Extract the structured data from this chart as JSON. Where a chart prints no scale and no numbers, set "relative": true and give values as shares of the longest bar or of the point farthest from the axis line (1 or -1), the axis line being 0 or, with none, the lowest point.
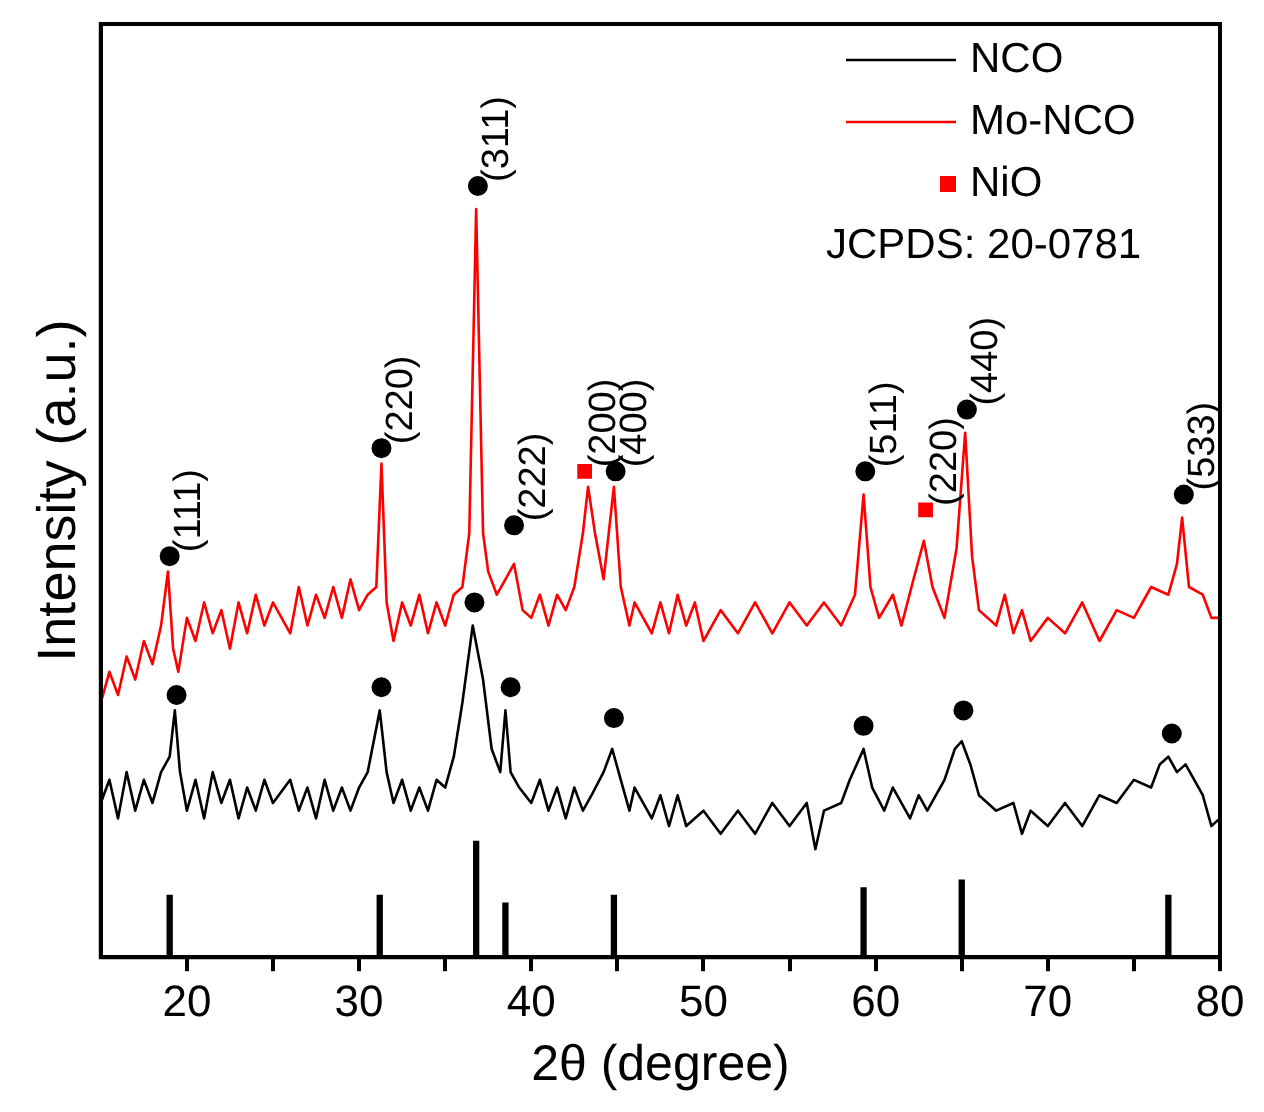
{
  "chart_data": {
    "type": "line",
    "relative": true,
    "xlabel": "2θ (degree)",
    "ylabel": "Intensity (a.u.)",
    "xlim": [
      15,
      80
    ],
    "xticks": [
      20,
      {
        "value": 25,
        "label": null
      },
      30,
      {
        "value": 35,
        "label": null
      },
      40,
      {
        "value": 45,
        "label": null
      },
      50,
      {
        "value": 55,
        "label": null
      },
      60,
      {
        "value": 65,
        "label": null
      },
      70,
      {
        "value": 75,
        "label": null
      },
      80
    ],
    "grid": false,
    "legend": "top right",
    "marker": "none",
    "line_style": "solid",
    "series": [
      {
        "name": "NCO",
        "color": "#000000",
        "x": [
          15,
          15.5,
          16,
          16.5,
          17,
          17.5,
          18,
          18.5,
          19,
          19.3,
          19.6,
          20,
          20.5,
          21,
          21.5,
          22,
          22.5,
          23,
          23.5,
          24,
          24.5,
          25,
          26,
          26.5,
          27,
          27.5,
          28,
          28.5,
          29,
          29.5,
          30,
          30.5,
          31.2,
          31.6,
          32,
          32.5,
          33,
          33.5,
          34,
          34.5,
          35,
          35.5,
          36,
          36.6,
          37.2,
          37.7,
          38.2,
          38.5,
          38.8,
          39.3,
          40,
          40.5,
          41,
          41.5,
          42,
          42.5,
          43,
          43.5,
          44.2,
          44.7,
          45.2,
          45.7,
          46,
          47,
          47.5,
          48,
          48.5,
          49,
          50,
          51,
          52,
          53,
          54,
          55,
          56,
          56.5,
          57,
          58,
          58.5,
          59.3,
          59.8,
          60.5,
          61,
          62,
          62.5,
          63,
          64,
          64.6,
          65,
          65.5,
          66,
          67,
          68,
          68.5,
          69,
          70,
          71,
          72,
          73,
          74,
          75,
          76,
          76.5,
          77,
          77.5,
          78,
          79,
          79.5,
          80
        ],
        "values": [
          0.2,
          0.23,
          0.18,
          0.24,
          0.19,
          0.23,
          0.2,
          0.24,
          0.26,
          0.32,
          0.24,
          0.19,
          0.23,
          0.18,
          0.24,
          0.2,
          0.23,
          0.18,
          0.22,
          0.19,
          0.23,
          0.2,
          0.23,
          0.19,
          0.22,
          0.18,
          0.23,
          0.19,
          0.22,
          0.19,
          0.22,
          0.24,
          0.32,
          0.24,
          0.2,
          0.23,
          0.19,
          0.22,
          0.19,
          0.23,
          0.22,
          0.26,
          0.33,
          0.43,
          0.36,
          0.27,
          0.24,
          0.32,
          0.24,
          0.22,
          0.2,
          0.23,
          0.19,
          0.22,
          0.18,
          0.22,
          0.19,
          0.21,
          0.24,
          0.27,
          0.23,
          0.19,
          0.22,
          0.18,
          0.21,
          0.17,
          0.21,
          0.17,
          0.19,
          0.16,
          0.19,
          0.16,
          0.2,
          0.17,
          0.2,
          0.14,
          0.19,
          0.2,
          0.23,
          0.27,
          0.22,
          0.19,
          0.22,
          0.18,
          0.21,
          0.19,
          0.23,
          0.27,
          0.28,
          0.25,
          0.21,
          0.19,
          0.2,
          0.16,
          0.19,
          0.17,
          0.2,
          0.17,
          0.21,
          0.2,
          0.23,
          0.22,
          0.25,
          0.26,
          0.24,
          0.25,
          0.21,
          0.17,
          0.18
        ]
      },
      {
        "name": "Mo-NCO",
        "color": "#ff0000",
        "x": [
          15,
          15.5,
          16,
          16.5,
          17,
          17.5,
          18,
          18.5,
          18.9,
          19.2,
          19.5,
          20,
          20.5,
          21,
          21.5,
          22,
          22.5,
          23,
          23.5,
          24,
          24.5,
          25,
          26,
          26.5,
          27,
          27.5,
          28,
          28.5,
          29,
          29.5,
          30,
          30.5,
          31,
          31.3,
          31.6,
          32,
          32.5,
          33,
          33.5,
          34,
          34.5,
          35,
          35.5,
          36,
          36.4,
          36.8,
          37.2,
          37.5,
          38,
          38.5,
          39,
          39.5,
          40,
          40.5,
          41,
          41.5,
          42,
          42.5,
          43,
          43.3,
          43.7,
          44.2,
          44.8,
          45.2,
          45.7,
          46,
          47,
          47.5,
          48,
          48.5,
          49,
          49.5,
          50,
          51,
          52,
          53,
          54,
          55,
          56,
          57,
          58,
          58.8,
          59.3,
          59.7,
          60.2,
          61,
          61.5,
          62.2,
          62.8,
          63.3,
          64,
          64.7,
          65.2,
          65.6,
          66,
          67,
          67.5,
          68,
          68.5,
          69,
          70,
          71,
          72,
          73,
          74,
          75,
          76,
          77,
          77.5,
          77.8,
          78.2,
          79,
          79.5,
          80
        ],
        "values": [
          0.33,
          0.37,
          0.34,
          0.39,
          0.36,
          0.41,
          0.38,
          0.43,
          0.5,
          0.4,
          0.37,
          0.44,
          0.41,
          0.46,
          0.42,
          0.45,
          0.4,
          0.46,
          0.42,
          0.47,
          0.43,
          0.46,
          0.42,
          0.48,
          0.43,
          0.47,
          0.44,
          0.48,
          0.44,
          0.49,
          0.45,
          0.47,
          0.48,
          0.64,
          0.46,
          0.41,
          0.46,
          0.43,
          0.47,
          0.42,
          0.46,
          0.43,
          0.47,
          0.48,
          0.55,
          0.97,
          0.55,
          0.5,
          0.47,
          0.49,
          0.51,
          0.45,
          0.44,
          0.47,
          0.43,
          0.47,
          0.45,
          0.48,
          0.55,
          0.61,
          0.55,
          0.49,
          0.61,
          0.48,
          0.43,
          0.46,
          0.42,
          0.46,
          0.42,
          0.47,
          0.43,
          0.46,
          0.41,
          0.45,
          0.42,
          0.46,
          0.42,
          0.46,
          0.43,
          0.46,
          0.43,
          0.47,
          0.6,
          0.48,
          0.44,
          0.47,
          0.43,
          0.49,
          0.54,
          0.48,
          0.44,
          0.53,
          0.68,
          0.52,
          0.45,
          0.43,
          0.47,
          0.42,
          0.45,
          0.41,
          0.44,
          0.42,
          0.46,
          0.41,
          0.45,
          0.44,
          0.48,
          0.47,
          0.51,
          0.57,
          0.48,
          0.47,
          0.44,
          0.44
        ]
      },
      {
        "color": "#000000",
        "type": "scatter",
        "marker": "circle",
        "x": [
          19.0,
          31.3,
          36.9,
          39.0,
          44.9,
          59.4,
          65.3,
          77.9,
          19.4,
          31.3,
          36.7,
          38.8,
          44.8,
          59.3,
          65.1,
          77.2
        ],
        "values": [
          0.52,
          0.66,
          1.0,
          0.56,
          0.63,
          0.63,
          0.71,
          0.6,
          0.34,
          0.35,
          0.46,
          0.35,
          0.31,
          0.3,
          0.32,
          0.29
        ]
      },
      {
        "name": "NiO",
        "color": "#ff0000",
        "type": "scatter",
        "marker": "square",
        "x": [
          43.1,
          62.9
        ],
        "values": [
          0.63,
          0.58
        ]
      },
      {
        "color": "#000000",
        "type": "bar",
        "x": [
          19.0,
          31.2,
          36.8,
          38.5,
          44.8,
          59.3,
          65.0,
          77.0
        ],
        "values": [
          0.08,
          0.08,
          0.15,
          0.07,
          0.08,
          0.09,
          0.1,
          0.08
        ]
      }
    ],
    "annotations": [
      {
        "text": "(111)",
        "x": 19.0,
        "y": 0.52
      },
      {
        "text": "(220)",
        "x": 31.3,
        "y": 0.66
      },
      {
        "text": "(311)",
        "x": 36.9,
        "y": 1.0
      },
      {
        "text": "(222)",
        "x": 39.0,
        "y": 0.56
      },
      {
        "text": "(200)",
        "x": 43.1,
        "y": 0.63
      },
      {
        "text": "(400)",
        "x": 44.9,
        "y": 0.63
      },
      {
        "text": "(511)",
        "x": 59.4,
        "y": 0.63
      },
      {
        "text": "(220)",
        "x": 62.9,
        "y": 0.58
      },
      {
        "text": "(440)",
        "x": 65.3,
        "y": 0.71
      },
      {
        "text": "(533)",
        "x": 77.9,
        "y": 0.6
      },
      "JCPDS: 20-0781"
    ]
  }
}
